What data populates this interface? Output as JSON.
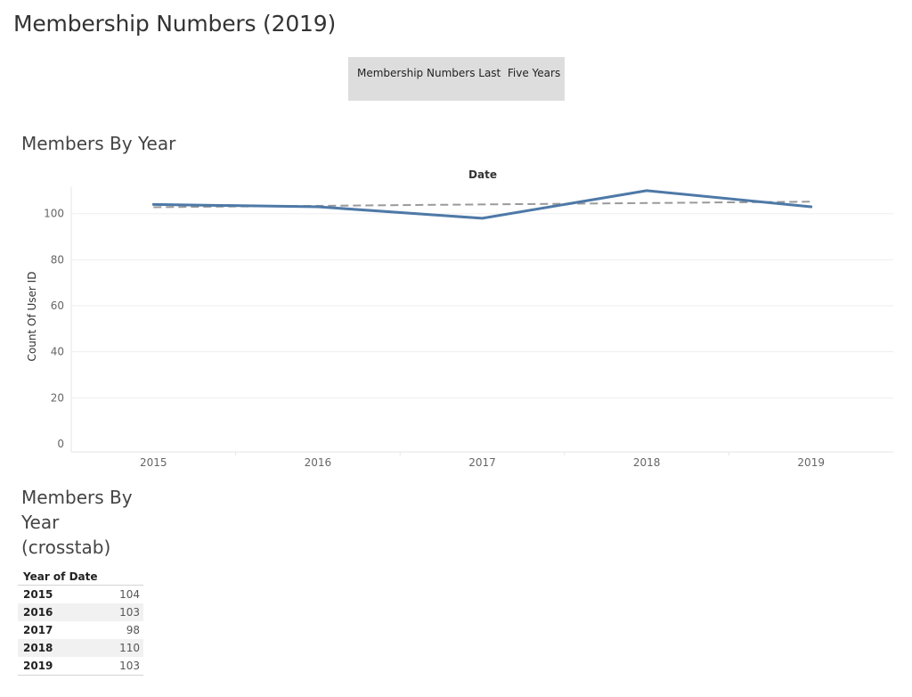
{
  "dashboard": {
    "title": "Membership Numbers (2019)"
  },
  "nav_button": {
    "label": "Membership Numbers Last  Five Years"
  },
  "sheets": {
    "line_title": "Members By Year",
    "crosstab_title": "Members By Year (crosstab)"
  },
  "colors": {
    "series_line": "#4e79a7",
    "trend_line": "#9a9a9a",
    "gridline": "#eeeeee",
    "axis_text": "#666666"
  },
  "chart_data": {
    "type": "line",
    "title": "Members By Year",
    "xlabel": "Date",
    "ylabel": "Count Of User ID",
    "x": [
      "2015",
      "2016",
      "2017",
      "2018",
      "2019"
    ],
    "series": [
      {
        "values": [
          104,
          103,
          98,
          110,
          103
        ]
      }
    ],
    "trend_line": {
      "start": 102.8,
      "end": 105.2
    },
    "yticks": [
      0,
      20,
      40,
      60,
      80,
      100
    ],
    "ylim": [
      0,
      110
    ],
    "grid": true,
    "legend": "none"
  },
  "crosstab": {
    "header": "Year of Date",
    "rows": [
      {
        "year": "2015",
        "count": "104"
      },
      {
        "year": "2016",
        "count": "103"
      },
      {
        "year": "2017",
        "count": "98"
      },
      {
        "year": "2018",
        "count": "110"
      },
      {
        "year": "2019",
        "count": "103"
      }
    ]
  }
}
